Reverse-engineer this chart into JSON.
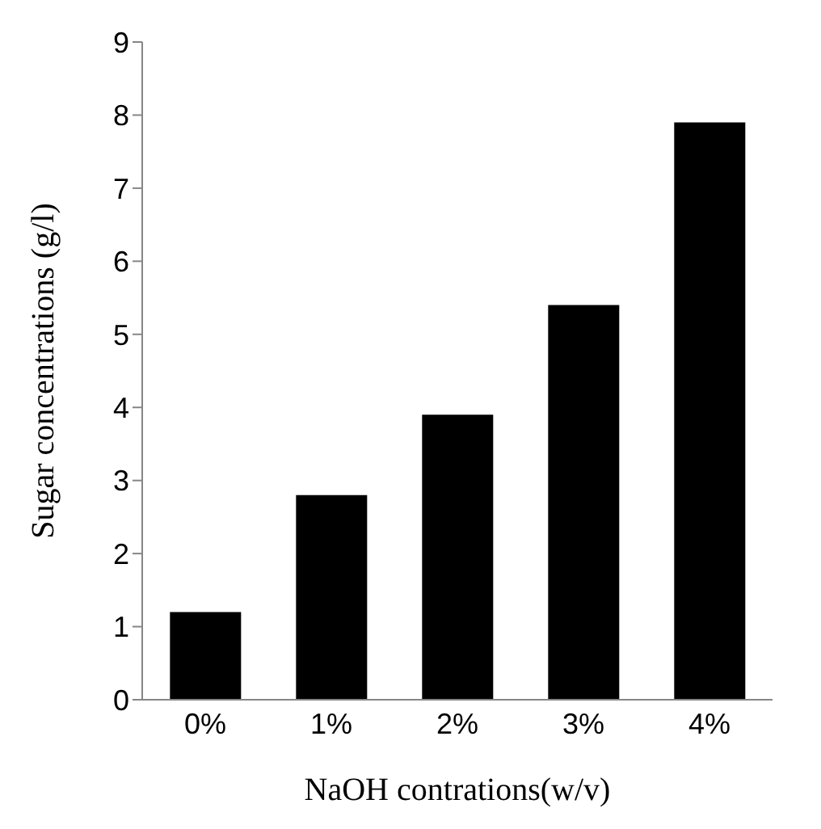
{
  "chart_data": {
    "type": "bar",
    "xlabel": "NaOH  contrations(w/v)",
    "ylabel": "Sugar concentrations (g/l)",
    "categories": [
      "0%",
      "1%",
      "2%",
      "3%",
      "4%"
    ],
    "values": [
      1.2,
      2.8,
      3.9,
      5.4,
      7.9
    ],
    "color": "#000000",
    "ylim": [
      0,
      9
    ],
    "yticks": [
      0,
      1,
      2,
      3,
      4,
      5,
      6,
      7,
      8,
      9
    ],
    "grid": false,
    "legend": false
  }
}
